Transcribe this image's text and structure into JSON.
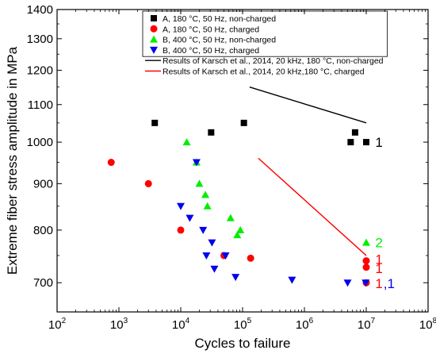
{
  "chart_data": {
    "type": "scatter",
    "xlabel": "Cycles to failure",
    "ylabel": "Extreme fiber stress amplitude in MPa",
    "x_scale": "log",
    "y_scale": "log",
    "xlim": [
      100,
      100000000
    ],
    "ylim": [
      650,
      1400
    ],
    "x_ticks": [
      {
        "value": 100,
        "base": "10",
        "exp": "2"
      },
      {
        "value": 1000,
        "base": "10",
        "exp": "3"
      },
      {
        "value": 10000,
        "base": "10",
        "exp": "4"
      },
      {
        "value": 100000,
        "base": "10",
        "exp": "5"
      },
      {
        "value": 1000000,
        "base": "10",
        "exp": "6"
      },
      {
        "value": 10000000,
        "base": "10",
        "exp": "7"
      },
      {
        "value": 100000000,
        "base": "10",
        "exp": "8"
      }
    ],
    "y_ticks": [
      "700",
      "800",
      "900",
      "1000",
      "1100",
      "1200",
      "1300",
      "1400"
    ],
    "grid": false,
    "legend_position": "top-right",
    "series": [
      {
        "name": "A, 180 °C, 50 Hz, non-charged",
        "marker": "square",
        "color": "#000000",
        "points": [
          [
            3800,
            1050
          ],
          [
            31000,
            1025
          ],
          [
            105000,
            1050
          ],
          [
            5600000,
            1000
          ],
          [
            6600000,
            1025
          ],
          [
            10000000,
            1000
          ]
        ]
      },
      {
        "name": "A, 180 °C, 50 Hz, charged",
        "marker": "circle",
        "color": "#ff0000",
        "points": [
          [
            750,
            950
          ],
          [
            3000,
            900
          ],
          [
            10000,
            800
          ],
          [
            50000,
            750
          ],
          [
            135000,
            745
          ],
          [
            10000000,
            740
          ],
          [
            10000000,
            728
          ],
          [
            10000000,
            700
          ]
        ]
      },
      {
        "name": "B, 400 °C, 50 Hz, non-charged",
        "marker": "triangle-up",
        "color": "#00ee00",
        "points": [
          [
            12500,
            1000
          ],
          [
            18000,
            950
          ],
          [
            20000,
            900
          ],
          [
            25000,
            875
          ],
          [
            27000,
            850
          ],
          [
            64000,
            825
          ],
          [
            82000,
            790
          ],
          [
            92000,
            800
          ],
          [
            10000000,
            775
          ]
        ]
      },
      {
        "name": "B, 400 °C, 50 Hz, charged",
        "marker": "triangle-down",
        "color": "#0000ee",
        "points": [
          [
            10000,
            850
          ],
          [
            14000,
            825
          ],
          [
            18000,
            950
          ],
          [
            23000,
            800
          ],
          [
            26000,
            750
          ],
          [
            32000,
            775
          ],
          [
            35000,
            725
          ],
          [
            53000,
            750
          ],
          [
            77000,
            710
          ],
          [
            630000,
            705
          ],
          [
            5000000,
            700
          ],
          [
            9800000,
            700
          ]
        ]
      }
    ],
    "lines": [
      {
        "name": "Results of  Karsch et al., 2014, 20 kHz, 180 °C, non-charged",
        "color": "#000000",
        "points": [
          [
            130000,
            1150
          ],
          [
            10000000,
            1050
          ]
        ]
      },
      {
        "name": "Results of Karsch et al., 2014, 20 kHz,180 °C, charged",
        "color": "#ff0000",
        "points": [
          [
            180000,
            960
          ],
          [
            10000000,
            750
          ]
        ]
      }
    ],
    "annotations": [
      {
        "text": "1",
        "color": "#000000",
        "x": 14000000,
        "y": 1000
      },
      {
        "text": "2",
        "color": "#00ee00",
        "x": 14000000,
        "y": 775
      },
      {
        "text": "1",
        "color": "#ff0000",
        "x": 14000000,
        "y": 743
      },
      {
        "text": "1",
        "color": "#ff0000",
        "x": 14000000,
        "y": 726
      },
      {
        "text": "1",
        "color": "#ff0000",
        "x": 14000000,
        "y": 699
      },
      {
        "text": ",1",
        "color": "#0000ee",
        "x": 19000000,
        "y": 699
      }
    ]
  }
}
